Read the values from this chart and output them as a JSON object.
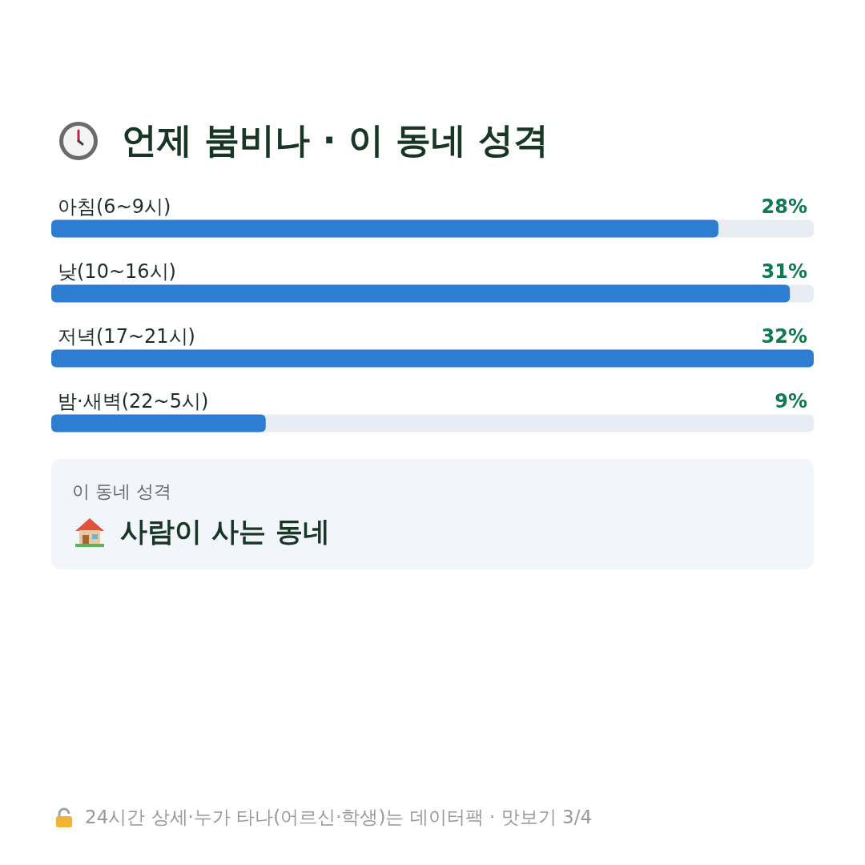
{
  "chart_data": {
    "type": "bar",
    "title": "언제 붐비나 · 이 동네 성격",
    "orientation": "horizontal",
    "categories": [
      "아침(6~9시)",
      "낮(10~16시)",
      "저녁(17~21시)",
      "밤·새벽(22~5시)"
    ],
    "values": [
      28,
      31,
      32,
      9
    ],
    "value_labels": [
      "28%",
      "31%",
      "32%",
      "9%"
    ],
    "color": "#2d7dd2",
    "xlim": [
      0,
      32
    ],
    "tick_labels": false,
    "annotations": [
      "이 동네 성격",
      "사람이 사는 동네",
      "24시간 상세·누가 타나(어르신·학생)는 데이터팩 · 맛보기 3/4"
    ]
  }
}
